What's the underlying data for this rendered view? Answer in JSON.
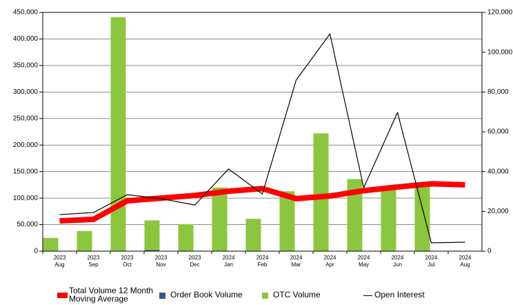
{
  "chart_data": {
    "type": "bar",
    "categories": [
      "2023 Aug",
      "2023 Sep",
      "2023 Oct",
      "2023 Nov",
      "2023 Dec",
      "2024 Jan",
      "2024 Feb",
      "2024 Mar",
      "2024 Apr",
      "2024 May",
      "2024 Jun",
      "2024 Jul",
      "2024 Aug"
    ],
    "series": [
      {
        "name": "Total Volume 12 Month Moving Average",
        "type": "line",
        "color": "#ff0000",
        "values": [
          57000,
          60000,
          95000,
          100000,
          105000,
          113000,
          118000,
          99000,
          104000,
          114000,
          121000,
          127000,
          125000
        ]
      },
      {
        "name": "Order Book Volume",
        "type": "bar",
        "color": "#2e5c8a",
        "values": [
          0,
          0,
          0,
          2000,
          0,
          0,
          0,
          0,
          0,
          0,
          0,
          0,
          0
        ]
      },
      {
        "name": "OTC Volume",
        "type": "bar",
        "color": "#8cc63f",
        "values": [
          25000,
          38000,
          441000,
          56000,
          51000,
          120000,
          61000,
          113000,
          222000,
          136000,
          116000,
          122000,
          0
        ]
      },
      {
        "name": "Open Interest",
        "type": "line",
        "axis": "y2",
        "color": "#000000",
        "values": [
          18400,
          19400,
          28400,
          26400,
          23200,
          41300,
          28800,
          86000,
          109200,
          31900,
          69700,
          4200,
          4500
        ]
      }
    ],
    "stacked": true,
    "ylim": [
      0,
      450000
    ],
    "yticks": [
      0,
      {
        "value": 50000,
        "label": "50,000"
      },
      {
        "value": 100000,
        "label": "100,000"
      },
      {
        "value": 150000,
        "label": "150,000"
      },
      {
        "value": 200000,
        "label": "200,000"
      },
      {
        "value": 250000,
        "label": "250,000"
      },
      {
        "value": 300000,
        "label": "300,000"
      },
      {
        "value": 350000,
        "label": "350,000"
      },
      {
        "value": 400000,
        "label": "400,000"
      },
      {
        "value": 450000,
        "label": "450,000"
      }
    ],
    "y2lim": [
      0,
      120000
    ],
    "y2ticks": [
      0,
      {
        "value": 20000,
        "label": "20,000"
      },
      {
        "value": 40000,
        "label": "40,000"
      },
      {
        "value": 60000,
        "label": "60,000"
      },
      {
        "value": 80000,
        "label": "80,000"
      },
      {
        "value": 100000,
        "label": "100,000"
      },
      {
        "value": 120000,
        "label": "120,000"
      }
    ],
    "grid": true,
    "legend": "bottom"
  }
}
